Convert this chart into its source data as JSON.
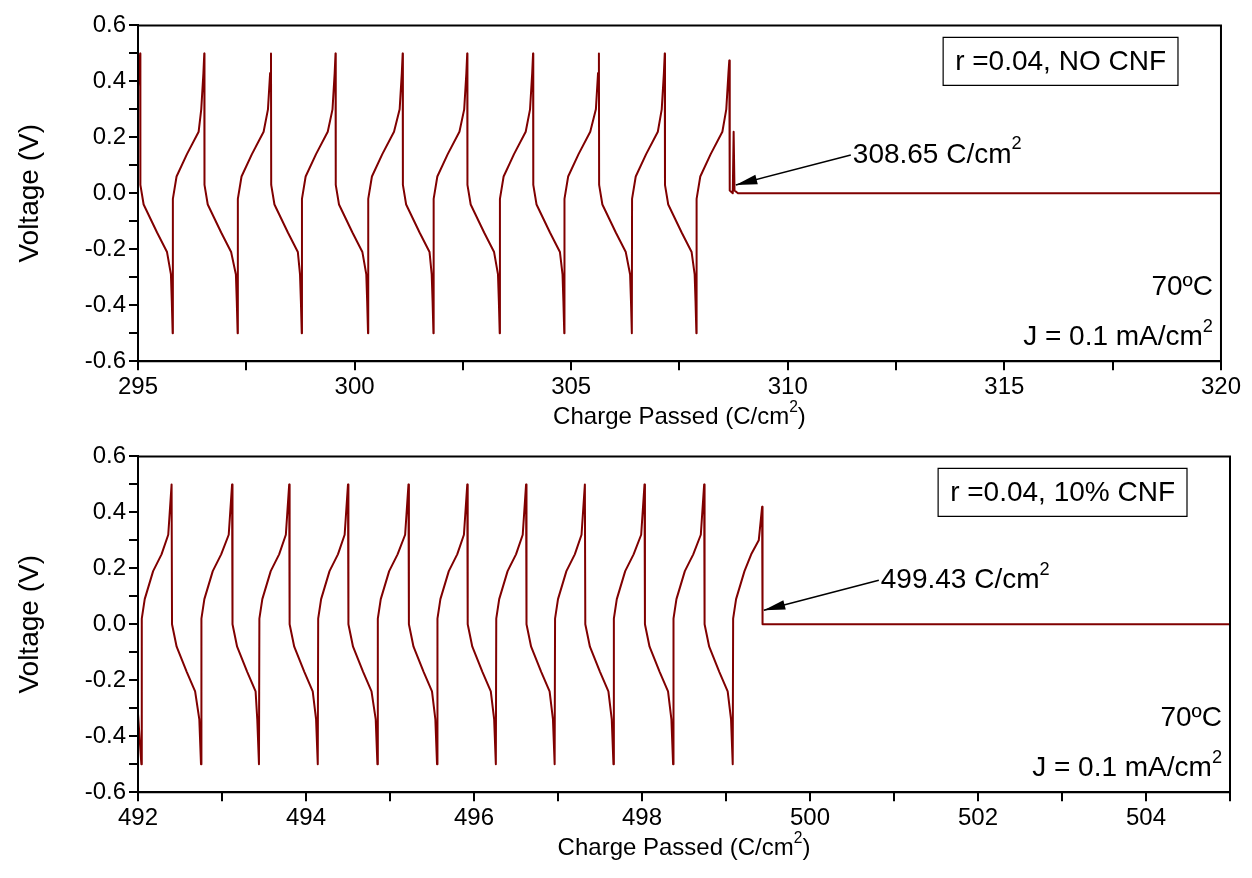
{
  "chart_data": [
    {
      "type": "line",
      "xlabel": "Charge Passed (C/cm$^{2}$)",
      "ylabel": "Voltage (V)",
      "xlim": [
        295,
        320
      ],
      "ylim": [
        -0.6,
        0.6
      ],
      "xticks": [
        295,
        {
          "value": 297.5,
          "label": null
        },
        300,
        {
          "value": 302.5,
          "label": null
        },
        305,
        {
          "value": 307.5,
          "label": null
        },
        310,
        {
          "value": 312.5,
          "label": null
        },
        315,
        {
          "value": 317.5,
          "label": null
        },
        320
      ],
      "yticks": [
        -0.6,
        {
          "value": -0.5,
          "label": null
        },
        -0.4,
        {
          "value": -0.3,
          "label": null
        },
        -0.2,
        {
          "value": -0.1,
          "label": null
        },
        {
          "value": 0,
          "label": "0.0"
        },
        {
          "value": 0.1,
          "label": null
        },
        0.2,
        {
          "value": 0.3,
          "label": null
        },
        0.4,
        {
          "value": 0.5,
          "label": null
        },
        0.6
      ],
      "grid": false,
      "marker": "none",
      "line_style": "solid",
      "annotations": [
        "r =0.04, NO CNF",
        "70ºC",
        "J = 0.1 mA/cm$^{2}$",
        {
          "text": "308.65 C/cm$^{2}$",
          "x": 308.8,
          "y": 0.03
        }
      ],
      "series": [
        {
          "color": "#800000",
          "x": [
            295.0,
            295.05,
            295.055,
            295.13,
            295.44,
            295.67,
            295.76,
            295.78,
            295.8,
            295.805,
            295.89,
            296.13,
            296.4,
            296.46,
            296.51,
            296.53,
            296.535,
            296.61,
            296.92,
            297.15,
            297.26,
            297.28,
            297.3,
            297.305,
            297.39,
            297.63,
            297.9,
            298.0,
            298.05,
            298.07,
            298.075,
            298.15,
            298.46,
            298.69,
            298.74,
            298.76,
            298.78,
            298.785,
            298.87,
            299.11,
            299.38,
            299.49,
            299.54,
            299.56,
            299.565,
            299.64,
            299.95,
            300.18,
            300.27,
            300.29,
            300.31,
            300.315,
            300.4,
            300.64,
            300.91,
            301.04,
            301.09,
            301.11,
            301.115,
            301.19,
            301.5,
            301.73,
            301.78,
            301.8,
            301.82,
            301.825,
            301.91,
            302.15,
            302.42,
            302.53,
            302.58,
            302.6,
            302.605,
            302.68,
            302.99,
            303.22,
            303.31,
            303.33,
            303.35,
            303.355,
            303.44,
            303.68,
            303.95,
            304.05,
            304.1,
            304.12,
            304.125,
            304.2,
            304.51,
            304.74,
            304.8,
            304.82,
            304.84,
            304.845,
            304.93,
            305.17,
            305.44,
            305.57,
            305.62,
            305.64,
            305.645,
            305.72,
            306.03,
            306.26,
            306.36,
            306.38,
            306.4,
            306.405,
            306.49,
            306.73,
            307.0,
            307.09,
            307.14,
            307.16,
            307.165,
            307.24,
            307.55,
            307.78,
            307.85,
            307.87,
            307.89,
            307.895,
            307.98,
            308.22,
            308.49,
            308.58,
            308.63,
            308.65,
            308.66,
            308.73,
            308.75,
            308.77,
            308.85,
            320
          ],
          "values": [
            0.38,
            0.5,
            0.03,
            -0.04,
            -0.14,
            -0.21,
            -0.29,
            -0.385,
            -0.5,
            -0.02,
            0.06,
            0.14,
            0.22,
            0.3,
            0.43,
            0.5,
            0.03,
            -0.04,
            -0.14,
            -0.21,
            -0.29,
            -0.385,
            -0.5,
            -0.02,
            0.06,
            0.14,
            0.22,
            0.3,
            0.43,
            0.5,
            0.03,
            -0.04,
            -0.14,
            -0.21,
            -0.29,
            -0.385,
            -0.5,
            -0.02,
            0.06,
            0.14,
            0.22,
            0.3,
            0.43,
            0.5,
            0.03,
            -0.04,
            -0.14,
            -0.21,
            -0.29,
            -0.385,
            -0.5,
            -0.02,
            0.06,
            0.14,
            0.22,
            0.3,
            0.43,
            0.5,
            0.03,
            -0.04,
            -0.14,
            -0.21,
            -0.29,
            -0.385,
            -0.5,
            -0.02,
            0.06,
            0.14,
            0.22,
            0.3,
            0.43,
            0.5,
            0.03,
            -0.04,
            -0.14,
            -0.21,
            -0.29,
            -0.385,
            -0.5,
            -0.02,
            0.06,
            0.14,
            0.22,
            0.3,
            0.43,
            0.5,
            0.03,
            -0.04,
            -0.14,
            -0.21,
            -0.29,
            -0.385,
            -0.5,
            -0.02,
            0.06,
            0.14,
            0.22,
            0.3,
            0.43,
            0.5,
            0.03,
            -0.04,
            -0.14,
            -0.21,
            -0.29,
            -0.385,
            -0.5,
            -0.02,
            0.06,
            0.14,
            0.22,
            0.3,
            0.43,
            0.5,
            0.03,
            -0.04,
            -0.14,
            -0.21,
            -0.29,
            -0.385,
            -0.5,
            -0.02,
            0.06,
            0.14,
            0.22,
            0.3,
            0.43,
            0.475,
            0.01,
            0.0,
            0.22,
            0.01,
            0.0,
            0.0
          ]
        }
      ]
    },
    {
      "type": "line",
      "xlabel": "Charge Passed (C/cm$^{2}$)",
      "ylabel": "Voltage (V)",
      "xlim": [
        492,
        505
      ],
      "ylim": [
        -0.6,
        0.6
      ],
      "xticks": [
        492,
        {
          "value": 493,
          "label": null
        },
        494,
        {
          "value": 495,
          "label": null
        },
        496,
        {
          "value": 497,
          "label": null
        },
        498,
        {
          "value": 499,
          "label": null
        },
        500,
        {
          "value": 501,
          "label": null
        },
        502,
        {
          "value": 503,
          "label": null
        },
        504,
        {
          "value": 505,
          "label": null
        }
      ],
      "yticks": [
        -0.6,
        {
          "value": -0.5,
          "label": null
        },
        -0.4,
        {
          "value": -0.3,
          "label": null
        },
        -0.2,
        {
          "value": -0.1,
          "label": null
        },
        {
          "value": 0,
          "label": "0.0"
        },
        {
          "value": 0.1,
          "label": null
        },
        0.2,
        {
          "value": 0.3,
          "label": null
        },
        0.4,
        {
          "value": 0.5,
          "label": null
        },
        0.6
      ],
      "grid": false,
      "marker": "none",
      "line_style": "solid",
      "annotations": [
        "r =0.04, 10% CNF",
        "70ºC",
        "J = 0.1 mA/cm$^{2}$",
        {
          "text": "499.43 C/cm$^{2}$",
          "x": 499.45,
          "y": 0.05
        }
      ],
      "series": [
        {
          "color": "#800000",
          "x": [
            492.0,
            492.04,
            492.045,
            492.08,
            492.18,
            492.28,
            492.36,
            492.4,
            492.405,
            492.46,
            492.58,
            492.68,
            492.73,
            492.75,
            492.755,
            492.79,
            492.89,
            492.99,
            493.08,
            493.12,
            493.125,
            493.18,
            493.3,
            493.4,
            493.42,
            493.44,
            493.445,
            493.48,
            493.58,
            493.68,
            493.76,
            493.8,
            493.805,
            493.86,
            493.98,
            494.08,
            494.12,
            494.14,
            494.145,
            494.18,
            494.28,
            494.38,
            494.46,
            494.5,
            494.505,
            494.56,
            494.68,
            494.78,
            494.83,
            494.85,
            494.855,
            494.89,
            494.99,
            495.09,
            495.18,
            495.22,
            495.225,
            495.28,
            495.4,
            495.5,
            495.54,
            495.56,
            495.565,
            495.6,
            495.7,
            495.8,
            495.88,
            495.92,
            495.925,
            495.98,
            496.1,
            496.2,
            496.24,
            496.26,
            496.265,
            496.3,
            496.4,
            496.5,
            496.58,
            496.62,
            496.625,
            496.68,
            496.8,
            496.9,
            496.94,
            496.96,
            496.965,
            497.0,
            497.1,
            497.2,
            497.28,
            497.32,
            497.325,
            497.38,
            497.5,
            497.6,
            497.64,
            497.66,
            497.665,
            497.7,
            497.8,
            497.9,
            497.99,
            498.03,
            498.035,
            498.09,
            498.21,
            498.31,
            498.35,
            498.37,
            498.375,
            498.41,
            498.51,
            498.61,
            498.7,
            498.74,
            498.745,
            498.8,
            498.92,
            499.02,
            499.06,
            499.08,
            499.085,
            499.12,
            499.22,
            499.3,
            499.39,
            499.43,
            499.435,
            505
          ],
          "values": [
            -0.32,
            -0.5,
            0.02,
            0.09,
            0.19,
            0.25,
            0.32,
            0.5,
            0.0,
            -0.08,
            -0.17,
            -0.24,
            -0.34,
            -0.5,
            0.02,
            0.09,
            0.19,
            0.25,
            0.32,
            0.5,
            0.0,
            -0.08,
            -0.17,
            -0.24,
            -0.34,
            -0.5,
            0.02,
            0.09,
            0.19,
            0.25,
            0.32,
            0.5,
            0.0,
            -0.08,
            -0.17,
            -0.24,
            -0.34,
            -0.5,
            0.02,
            0.09,
            0.19,
            0.25,
            0.32,
            0.5,
            0.0,
            -0.08,
            -0.17,
            -0.24,
            -0.34,
            -0.5,
            0.02,
            0.09,
            0.19,
            0.25,
            0.32,
            0.5,
            0.0,
            -0.08,
            -0.17,
            -0.24,
            -0.34,
            -0.5,
            0.02,
            0.09,
            0.19,
            0.25,
            0.32,
            0.5,
            0.0,
            -0.08,
            -0.17,
            -0.24,
            -0.34,
            -0.5,
            0.02,
            0.09,
            0.19,
            0.25,
            0.32,
            0.5,
            0.0,
            -0.08,
            -0.17,
            -0.24,
            -0.34,
            -0.5,
            0.02,
            0.09,
            0.19,
            0.25,
            0.32,
            0.5,
            0.0,
            -0.08,
            -0.17,
            -0.24,
            -0.34,
            -0.5,
            0.02,
            0.09,
            0.19,
            0.25,
            0.32,
            0.5,
            0.0,
            -0.08,
            -0.17,
            -0.24,
            -0.34,
            -0.5,
            0.02,
            0.09,
            0.19,
            0.25,
            0.32,
            0.5,
            0.0,
            -0.08,
            -0.17,
            -0.24,
            -0.34,
            -0.5,
            0.02,
            0.09,
            0.19,
            0.25,
            0.3,
            0.42,
            0.0,
            0.0
          ]
        }
      ]
    }
  ]
}
